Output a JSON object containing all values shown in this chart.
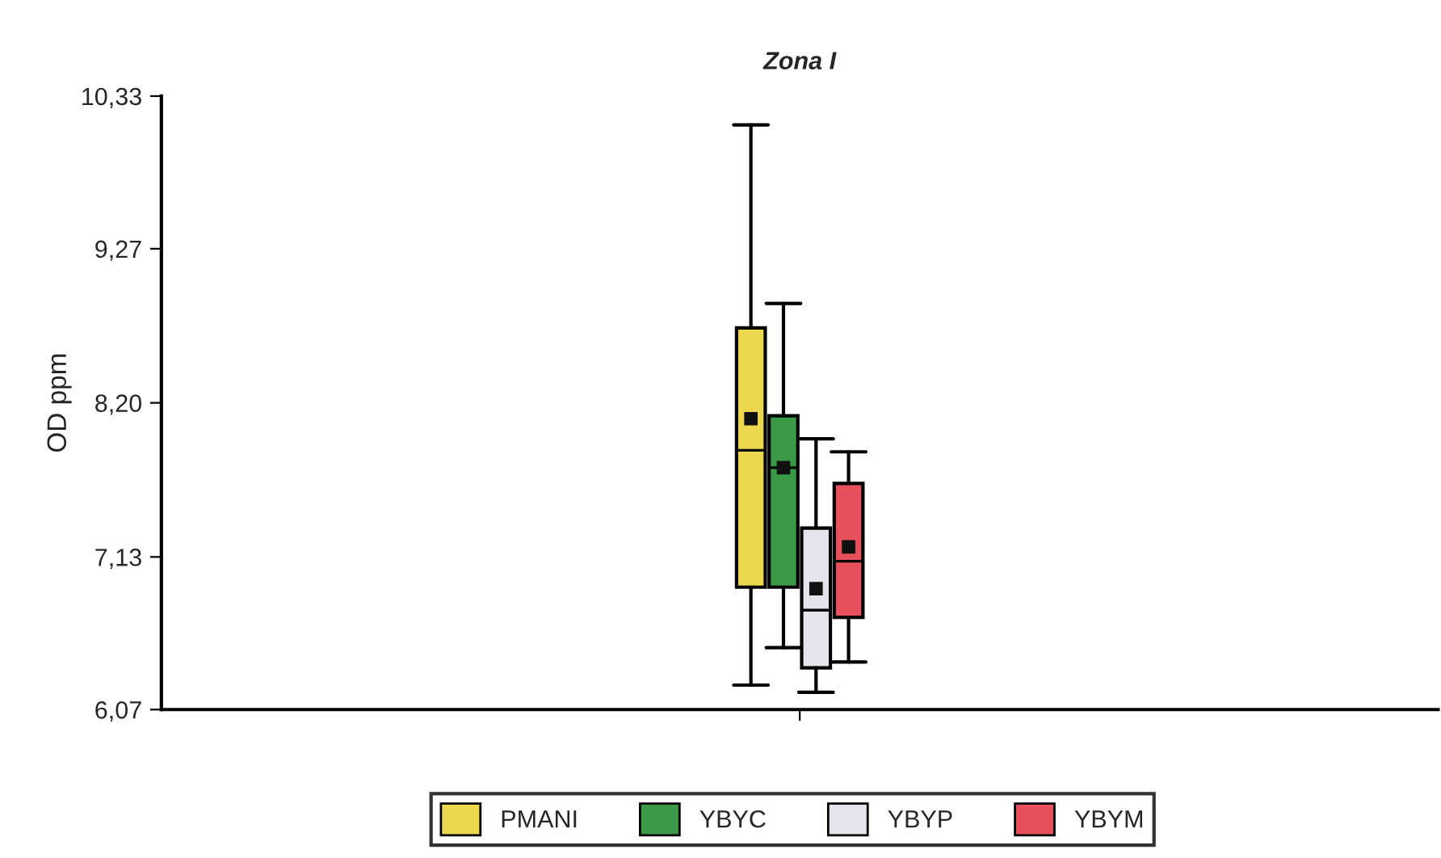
{
  "chart_data": {
    "type": "box",
    "title": "Zona I",
    "ylabel": "OD ppm",
    "categories": [
      null
    ],
    "ylim": [
      6.07,
      10.33
    ],
    "yticks": [
      {
        "value": 6.07,
        "label": "6,07"
      },
      {
        "value": 7.13,
        "label": "7,13"
      },
      {
        "value": 8.2,
        "label": "8,20"
      },
      {
        "value": 9.27,
        "label": "9,27"
      },
      {
        "value": 10.33,
        "label": "10,33"
      }
    ],
    "grid": false,
    "legend": "bottom",
    "marker": "square",
    "series": [
      {
        "name": "PMANI",
        "color": "#ecd84f",
        "boxes": [
          {
            "low": 6.24,
            "q1": 6.92,
            "median": 7.87,
            "q3": 8.72,
            "high": 10.13,
            "mean": 8.09
          }
        ]
      },
      {
        "name": "YBYC",
        "color": "#3a9a48",
        "boxes": [
          {
            "low": 6.5,
            "q1": 6.92,
            "median": 7.75,
            "q3": 8.11,
            "high": 8.89,
            "mean": 7.75
          }
        ]
      },
      {
        "name": "YBYP",
        "color": "#e4e4ec",
        "boxes": [
          {
            "low": 6.19,
            "q1": 6.36,
            "median": 6.76,
            "q3": 7.33,
            "high": 7.95,
            "mean": 6.91
          }
        ]
      },
      {
        "name": "YBYM",
        "color": "#e8505c",
        "boxes": [
          {
            "low": 6.4,
            "q1": 6.71,
            "median": 7.1,
            "q3": 7.64,
            "high": 7.86,
            "mean": 7.2
          }
        ]
      }
    ]
  }
}
